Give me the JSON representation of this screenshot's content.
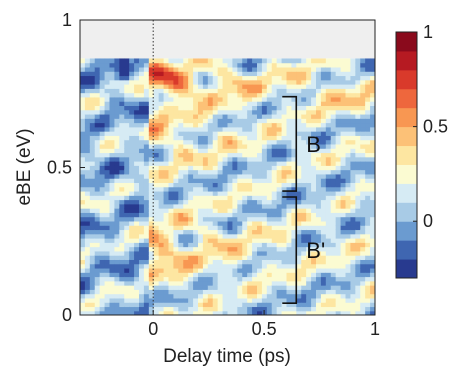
{
  "chart_data": {
    "type": "heatmap",
    "xlabel": "Delay time (ps)",
    "ylabel": "eBE (eV)",
    "xlim": [
      -0.33,
      1.0
    ],
    "ylim": [
      0.0,
      1.0
    ],
    "xticks": [
      {
        "value": 0,
        "label": "0"
      },
      {
        "value": 0.5,
        "label": "0.5"
      },
      {
        "value": 1,
        "label": "1"
      }
    ],
    "yticks": [
      {
        "value": 0,
        "label": "0"
      },
      {
        "value": 0.5,
        "label": "0.5"
      },
      {
        "value": 1,
        "label": "1"
      }
    ],
    "no_data_above_ebe": 0.87,
    "time_zero_line": 0,
    "colorbar": {
      "range": [
        -0.3,
        1.0
      ],
      "ticks": [
        {
          "value": 1,
          "label": "1"
        },
        {
          "value": 0.5,
          "label": "0.5"
        },
        {
          "value": 0,
          "label": "0"
        }
      ],
      "levels": [
        -0.3,
        -0.2,
        -0.1,
        0.0,
        0.1,
        0.2,
        0.3,
        0.4,
        0.5,
        0.6,
        0.7,
        0.8,
        0.9,
        1.0
      ],
      "colors": [
        "#283a8f",
        "#3f66b1",
        "#6b9bd0",
        "#a8cbe6",
        "#d6ebf4",
        "#fbfbd2",
        "#fde6a1",
        "#fcc177",
        "#f89752",
        "#ee673d",
        "#d93a2b",
        "#b61a22",
        "#8a0a1c"
      ]
    },
    "annotations": [
      {
        "label": "B",
        "ebe_range": [
          0.42,
          0.74
        ],
        "delay": 0.6
      },
      {
        "label": "B'",
        "ebe_range": [
          0.04,
          0.4
        ],
        "delay": 0.6
      }
    ]
  }
}
